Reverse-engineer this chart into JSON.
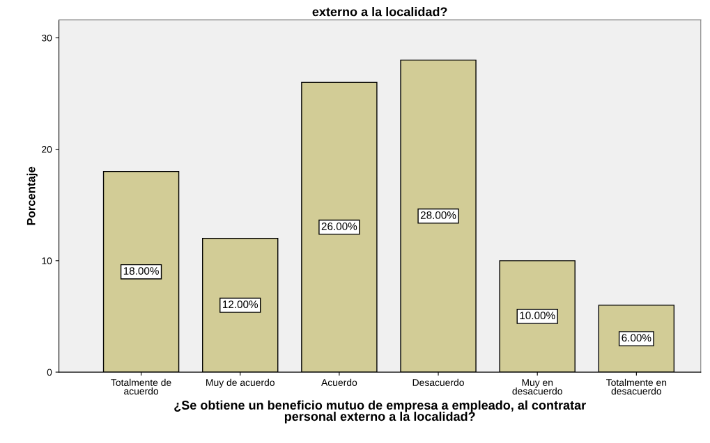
{
  "chart_data": {
    "type": "bar",
    "title": "externo a la localidad?",
    "xlabel": "¿Se obtiene un beneficio mutuo de empresa a empleado, al contratar\npersonal externo a la localidad?",
    "ylabel": "Porcentaje",
    "categories": [
      "Totalmente de\nacuerdo",
      "Muy de acuerdo",
      "Acuerdo",
      "Desacuerdo",
      "Muy en\ndesacuerdo",
      "Totalmente en\ndesacuerdo"
    ],
    "values": [
      18,
      12,
      26,
      28,
      10,
      6
    ],
    "value_labels": [
      "18.00%",
      "12.00%",
      "26.00%",
      "28.00%",
      "10.00%",
      "6.00%"
    ],
    "color": "#d2cc96",
    "ylim": [
      0,
      31.6
    ],
    "yticks": [
      0,
      10,
      20,
      30
    ],
    "grid": false
  }
}
